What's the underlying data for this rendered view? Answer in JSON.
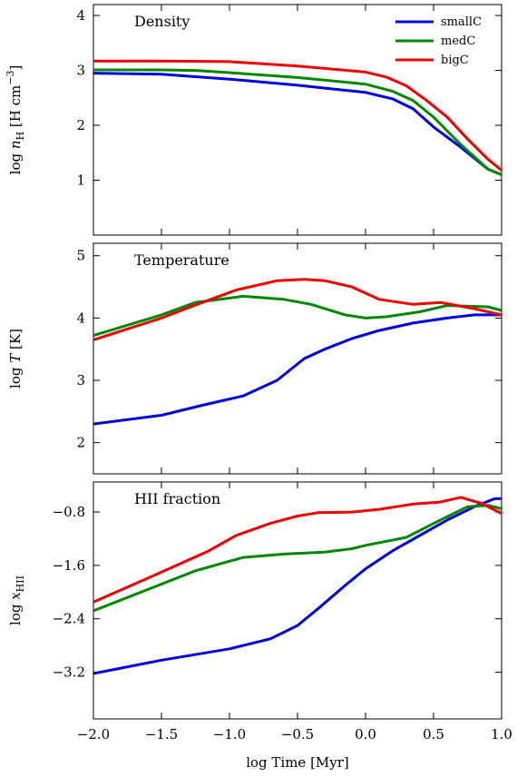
{
  "chart_data": [
    {
      "type": "line",
      "title": "Density",
      "ylabel": "log  n_H [H cm^-3]",
      "xlim": [
        -2.0,
        1.0
      ],
      "ylim": [
        0.0,
        4.2
      ],
      "yticks": [
        1,
        2,
        3,
        4
      ],
      "ytick_labels": [
        "1",
        "2",
        "3",
        "4"
      ],
      "legend_position": "top-right",
      "series": [
        {
          "name": "smallC",
          "color": "#0000dd",
          "x": [
            -2.0,
            -1.5,
            -1.0,
            -0.5,
            0.0,
            0.2,
            0.35,
            0.5,
            0.7,
            0.9,
            1.0
          ],
          "y": [
            2.95,
            2.93,
            2.84,
            2.73,
            2.6,
            2.48,
            2.3,
            1.97,
            1.6,
            1.2,
            1.1
          ]
        },
        {
          "name": "medC",
          "color": "#008800",
          "x": [
            -2.0,
            -1.5,
            -1.25,
            -1.0,
            -0.5,
            0.0,
            0.2,
            0.35,
            0.5,
            0.7,
            0.9,
            1.0
          ],
          "y": [
            3.01,
            3.01,
            3.0,
            2.96,
            2.87,
            2.75,
            2.62,
            2.45,
            2.15,
            1.65,
            1.2,
            1.1
          ]
        },
        {
          "name": "bigC",
          "color": "#ee0000",
          "x": [
            -2.0,
            -1.5,
            -1.0,
            -0.5,
            0.0,
            0.15,
            0.3,
            0.45,
            0.6,
            0.75,
            0.9,
            1.0
          ],
          "y": [
            3.17,
            3.17,
            3.16,
            3.08,
            2.97,
            2.88,
            2.72,
            2.45,
            2.15,
            1.75,
            1.38,
            1.18
          ]
        }
      ]
    },
    {
      "type": "line",
      "title": "Temperature",
      "ylabel": "log T [K]",
      "xlim": [
        -2.0,
        1.0
      ],
      "ylim": [
        1.5,
        5.2
      ],
      "yticks": [
        2,
        3,
        4,
        5
      ],
      "ytick_labels": [
        "2",
        "3",
        "4",
        "5"
      ],
      "series": [
        {
          "name": "smallC",
          "color": "#0000dd",
          "x": [
            -2.0,
            -1.5,
            -1.2,
            -0.9,
            -0.65,
            -0.45,
            -0.3,
            -0.1,
            0.1,
            0.35,
            0.6,
            0.8,
            1.0
          ],
          "y": [
            2.3,
            2.44,
            2.6,
            2.75,
            3.0,
            3.35,
            3.5,
            3.67,
            3.8,
            3.92,
            4.0,
            4.05,
            4.05
          ]
        },
        {
          "name": "medC",
          "color": "#008800",
          "x": [
            -2.0,
            -1.5,
            -1.25,
            -0.9,
            -0.6,
            -0.4,
            -0.15,
            0.0,
            0.15,
            0.4,
            0.6,
            0.9,
            1.0
          ],
          "y": [
            3.72,
            4.05,
            4.25,
            4.35,
            4.3,
            4.22,
            4.05,
            4.0,
            4.02,
            4.1,
            4.2,
            4.18,
            4.12
          ]
        },
        {
          "name": "bigC",
          "color": "#ee0000",
          "x": [
            -2.0,
            -1.5,
            -1.2,
            -0.95,
            -0.65,
            -0.45,
            -0.3,
            -0.1,
            0.1,
            0.35,
            0.55,
            0.8,
            1.0
          ],
          "y": [
            3.65,
            4.0,
            4.25,
            4.45,
            4.6,
            4.62,
            4.6,
            4.5,
            4.3,
            4.22,
            4.25,
            4.15,
            4.05
          ]
        }
      ]
    },
    {
      "type": "line",
      "title": "HII fraction",
      "ylabel": "log x_HII",
      "xlim": [
        -2.0,
        1.0
      ],
      "ylim": [
        -3.9,
        -0.35
      ],
      "yticks": [
        -3.2,
        -2.4,
        -1.6,
        -0.8
      ],
      "ytick_labels": [
        "−3.2",
        "−2.4",
        "−1.6",
        "−0.8"
      ],
      "xticks": [
        -2.0,
        -1.5,
        -1.0,
        -0.5,
        0.0,
        0.5,
        1.0
      ],
      "xtick_labels": [
        "−2.0",
        "−1.5",
        "−1.0",
        "−0.5",
        "0.0",
        "0.5",
        "1.0"
      ],
      "xlabel": "log Time [Myr]",
      "series": [
        {
          "name": "smallC",
          "color": "#0000dd",
          "x": [
            -2.0,
            -1.5,
            -1.0,
            -0.7,
            -0.5,
            -0.35,
            -0.15,
            0.0,
            0.2,
            0.4,
            0.6,
            0.8,
            0.95,
            1.0
          ],
          "y": [
            -3.22,
            -3.02,
            -2.85,
            -2.7,
            -2.5,
            -2.25,
            -1.9,
            -1.65,
            -1.38,
            -1.15,
            -0.92,
            -0.72,
            -0.6,
            -0.6
          ]
        },
        {
          "name": "medC",
          "color": "#008800",
          "x": [
            -2.0,
            -1.5,
            -1.25,
            -0.9,
            -0.6,
            -0.3,
            -0.1,
            0.0,
            0.3,
            0.55,
            0.75,
            0.9,
            1.0
          ],
          "y": [
            -2.28,
            -1.88,
            -1.68,
            -1.48,
            -1.43,
            -1.4,
            -1.35,
            -1.3,
            -1.18,
            -0.92,
            -0.72,
            -0.7,
            -0.75
          ]
        },
        {
          "name": "bigC",
          "color": "#ee0000",
          "x": [
            -2.0,
            -1.5,
            -1.15,
            -0.95,
            -0.7,
            -0.5,
            -0.35,
            -0.1,
            0.1,
            0.35,
            0.55,
            0.7,
            0.85,
            1.0
          ],
          "y": [
            -2.15,
            -1.7,
            -1.38,
            -1.15,
            -0.97,
            -0.86,
            -0.81,
            -0.8,
            -0.76,
            -0.68,
            -0.65,
            -0.58,
            -0.67,
            -0.82
          ]
        }
      ]
    }
  ]
}
